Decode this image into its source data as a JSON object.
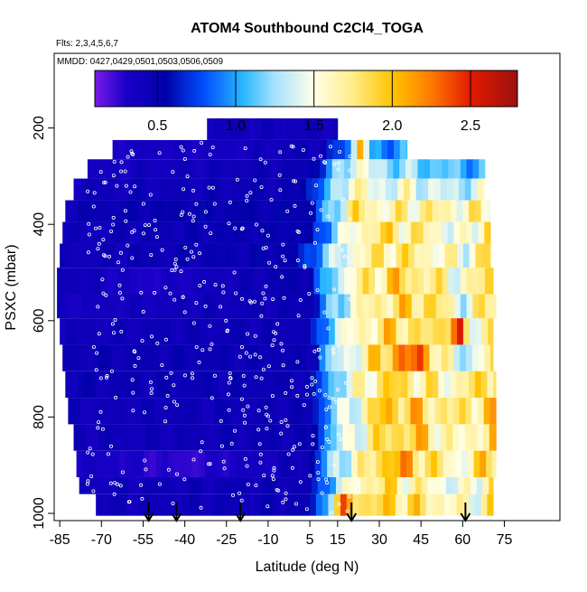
{
  "chart_data": {
    "type": "heatmap",
    "title": "ATOM4 Southbound C2Cl4_TOGA",
    "subtitle_flights": "Flts: 2,3,4,5,6,7",
    "subtitle_dates": "MMDD: 0427,0429,0501,0503,0506,0509",
    "xlabel": "Latitude (deg N)",
    "ylabel": "PSXC (mbar)",
    "x_ticks": [
      -85,
      -70,
      -55,
      -40,
      -25,
      -10,
      5,
      15,
      30,
      45,
      60,
      75
    ],
    "y_ticks": [
      200,
      400,
      600,
      800,
      1000
    ],
    "xlim": [
      -87,
      95
    ],
    "ylim": [
      1015,
      45
    ],
    "colorbar": {
      "ticks": [
        0.5,
        1.0,
        1.5,
        2.0,
        2.5
      ],
      "tick_labels": [
        "0.5",
        "1.0",
        "1.5",
        "2.0",
        "2.5"
      ],
      "range": [
        0.1,
        2.8
      ],
      "stops": [
        {
          "v": 0.1,
          "color": "#7a1be8"
        },
        {
          "v": 0.3,
          "color": "#1a00c8"
        },
        {
          "v": 0.55,
          "color": "#0000a8"
        },
        {
          "v": 0.8,
          "color": "#0050ff"
        },
        {
          "v": 1.05,
          "color": "#2ab8ff"
        },
        {
          "v": 1.25,
          "color": "#a8e2ff"
        },
        {
          "v": 1.5,
          "color": "#ffffe6"
        },
        {
          "v": 1.75,
          "color": "#ffec88"
        },
        {
          "v": 2.0,
          "color": "#ffc400"
        },
        {
          "v": 2.25,
          "color": "#ff7a00"
        },
        {
          "v": 2.5,
          "color": "#e21a00"
        },
        {
          "v": 2.8,
          "color": "#9c1010"
        }
      ]
    },
    "arrows_latitude": [
      -53,
      -43,
      -20,
      20,
      61
    ],
    "curtain_rows": [
      {
        "p": [
          180,
          225
        ],
        "x": [
          -32,
          15
        ],
        "v": 0.4
      },
      {
        "p": [
          225,
          265
        ],
        "x": [
          -66,
          40
        ],
        "profile": [
          [
            -66,
            0.35
          ],
          [
            -20,
            0.35
          ],
          [
            10,
            0.45
          ],
          [
            20,
            1.0
          ],
          [
            24,
            2.5
          ],
          [
            26,
            0.9
          ],
          [
            40,
            1.0
          ]
        ]
      },
      {
        "p": [
          265,
          305
        ],
        "x": [
          -75,
          68
        ],
        "profile": [
          [
            -75,
            0.35
          ],
          [
            5,
            0.45
          ],
          [
            15,
            1.1
          ],
          [
            22,
            1.6
          ],
          [
            28,
            1.3
          ],
          [
            40,
            1.2
          ],
          [
            55,
            1.1
          ],
          [
            68,
            1.0
          ]
        ]
      },
      {
        "p": [
          305,
          350
        ],
        "x": [
          -80,
          68
        ],
        "profile": [
          [
            -80,
            0.4
          ],
          [
            0,
            0.45
          ],
          [
            12,
            1.0
          ],
          [
            20,
            1.7
          ],
          [
            28,
            1.4
          ],
          [
            40,
            1.5
          ],
          [
            55,
            1.3
          ],
          [
            68,
            1.4
          ]
        ]
      },
      {
        "p": [
          350,
          395
        ],
        "x": [
          -83,
          70
        ],
        "profile": [
          [
            -83,
            0.45
          ],
          [
            -40,
            0.5
          ],
          [
            5,
            0.5
          ],
          [
            14,
            1.3
          ],
          [
            22,
            1.8
          ],
          [
            30,
            1.6
          ],
          [
            45,
            1.7
          ],
          [
            60,
            1.6
          ],
          [
            70,
            1.7
          ]
        ]
      },
      {
        "p": [
          395,
          440
        ],
        "x": [
          -84,
          70
        ],
        "profile": [
          [
            -84,
            0.4
          ],
          [
            5,
            0.5
          ],
          [
            14,
            1.2
          ],
          [
            22,
            1.6
          ],
          [
            30,
            1.8
          ],
          [
            45,
            1.7
          ],
          [
            60,
            1.4
          ],
          [
            70,
            1.9
          ]
        ]
      },
      {
        "p": [
          440,
          490
        ],
        "x": [
          -85,
          70
        ],
        "profile": [
          [
            -85,
            0.4
          ],
          [
            0,
            0.5
          ],
          [
            12,
            1.2
          ],
          [
            22,
            1.6
          ],
          [
            35,
            1.8
          ],
          [
            50,
            1.6
          ],
          [
            62,
            1.5
          ],
          [
            70,
            1.9
          ]
        ]
      },
      {
        "p": [
          490,
          545
        ],
        "x": [
          -86,
          71
        ],
        "profile": [
          [
            -86,
            0.45
          ],
          [
            -55,
            0.3
          ],
          [
            5,
            0.5
          ],
          [
            14,
            1.3
          ],
          [
            24,
            1.7
          ],
          [
            36,
            1.9
          ],
          [
            50,
            1.7
          ],
          [
            62,
            1.5
          ],
          [
            71,
            2.0
          ]
        ]
      },
      {
        "p": [
          545,
          595
        ],
        "x": [
          -86,
          72
        ],
        "profile": [
          [
            -86,
            0.35
          ],
          [
            5,
            0.45
          ],
          [
            14,
            1.2
          ],
          [
            24,
            1.6
          ],
          [
            34,
            1.8
          ],
          [
            48,
            1.9
          ],
          [
            60,
            1.4
          ],
          [
            72,
            1.9
          ]
        ]
      },
      {
        "p": [
          595,
          650
        ],
        "x": [
          -85,
          71
        ],
        "profile": [
          [
            -85,
            0.4
          ],
          [
            5,
            0.45
          ],
          [
            14,
            1.3
          ],
          [
            22,
            1.6
          ],
          [
            36,
            1.9
          ],
          [
            50,
            1.7
          ],
          [
            58,
            2.5
          ],
          [
            62,
            1.4
          ],
          [
            71,
            1.9
          ]
        ]
      },
      {
        "p": [
          650,
          705
        ],
        "x": [
          -84,
          71
        ],
        "profile": [
          [
            -84,
            0.45
          ],
          [
            5,
            0.45
          ],
          [
            14,
            1.3
          ],
          [
            24,
            1.6
          ],
          [
            34,
            2.1
          ],
          [
            46,
            2.3
          ],
          [
            52,
            1.6
          ],
          [
            62,
            1.3
          ],
          [
            71,
            1.7
          ]
        ]
      },
      {
        "p": [
          705,
          760
        ],
        "x": [
          -83,
          72
        ],
        "profile": [
          [
            -83,
            0.45
          ],
          [
            5,
            0.45
          ],
          [
            14,
            1.2
          ],
          [
            24,
            1.6
          ],
          [
            34,
            1.9
          ],
          [
            46,
            1.7
          ],
          [
            58,
            1.6
          ],
          [
            72,
            2.0
          ]
        ]
      },
      {
        "p": [
          760,
          815
        ],
        "x": [
          -82,
          72
        ],
        "profile": [
          [
            -82,
            0.4
          ],
          [
            5,
            0.45
          ],
          [
            14,
            1.2
          ],
          [
            24,
            1.6
          ],
          [
            32,
            2.0
          ],
          [
            44,
            1.9
          ],
          [
            56,
            1.7
          ],
          [
            72,
            1.9
          ]
        ]
      },
      {
        "p": [
          815,
          870
        ],
        "x": [
          -80,
          72
        ],
        "profile": [
          [
            -80,
            0.4
          ],
          [
            5,
            0.45
          ],
          [
            14,
            1.2
          ],
          [
            24,
            1.6
          ],
          [
            34,
            1.9
          ],
          [
            46,
            1.9
          ],
          [
            58,
            1.5
          ],
          [
            72,
            1.9
          ]
        ]
      },
      {
        "p": [
          870,
          925
        ],
        "x": [
          -79,
          72
        ],
        "profile": [
          [
            -79,
            0.35
          ],
          [
            -40,
            0.25
          ],
          [
            5,
            0.45
          ],
          [
            14,
            1.3
          ],
          [
            24,
            1.6
          ],
          [
            34,
            2.1
          ],
          [
            46,
            1.9
          ],
          [
            58,
            1.5
          ],
          [
            72,
            2.0
          ]
        ]
      },
      {
        "p": [
          925,
          960
        ],
        "x": [
          -78,
          71
        ],
        "profile": [
          [
            -78,
            0.4
          ],
          [
            5,
            0.45
          ],
          [
            14,
            1.2
          ],
          [
            24,
            1.7
          ],
          [
            34,
            1.8
          ],
          [
            46,
            1.6
          ],
          [
            60,
            1.4
          ],
          [
            71,
            1.8
          ]
        ]
      },
      {
        "p": [
          960,
          1005
        ],
        "x": [
          -72,
          71
        ],
        "profile": [
          [
            -72,
            0.4
          ],
          [
            5,
            0.45
          ],
          [
            12,
            1.3
          ],
          [
            18,
            2.2
          ],
          [
            26,
            1.8
          ],
          [
            36,
            1.9
          ],
          [
            50,
            1.7
          ],
          [
            62,
            1.5
          ],
          [
            71,
            1.8
          ]
        ]
      }
    ]
  }
}
